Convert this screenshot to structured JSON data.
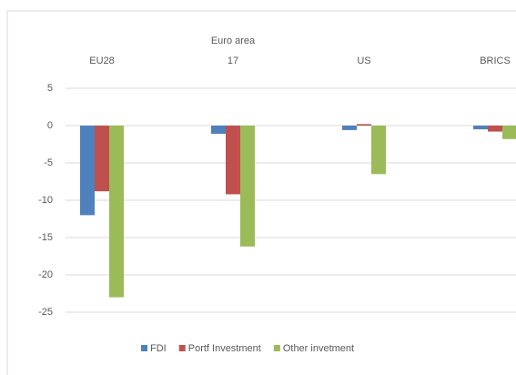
{
  "chart_data": {
    "type": "bar",
    "categories": [
      "EU28",
      "Euro area 17",
      "US",
      "BRICS"
    ],
    "series": [
      {
        "name": "FDI",
        "color": "#4f81bd",
        "values": [
          -12,
          -1.1,
          -0.6,
          -0.5
        ]
      },
      {
        "name": "Portf Investment",
        "color": "#c0504d",
        "values": [
          -8.8,
          -9.2,
          0.2,
          -0.8
        ]
      },
      {
        "name": "Other invetment",
        "color": "#9bbb59",
        "values": [
          -23,
          -16.2,
          -6.5,
          -1.8
        ]
      }
    ],
    "ylim": [
      -25,
      5
    ],
    "yticks": [
      5,
      0,
      -5,
      -10,
      -15,
      -20,
      -25
    ],
    "grid": true
  }
}
